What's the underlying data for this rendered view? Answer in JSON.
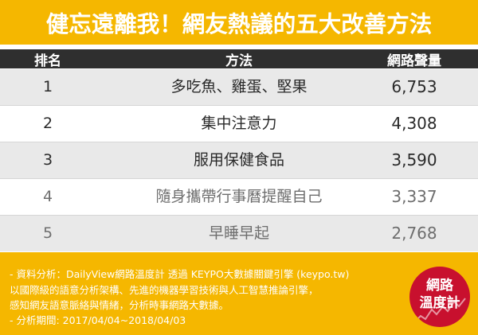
{
  "title": "健忘遠離我！網友熱議的五大改善方法",
  "chart_data": {
    "type": "table",
    "columns": [
      "排名",
      "方法",
      "網路聲量"
    ],
    "rows": [
      {
        "rank": "1",
        "method": "多吃魚、雞蛋、堅果",
        "volume": "6,753"
      },
      {
        "rank": "2",
        "method": "集中注意力",
        "volume": "4,308"
      },
      {
        "rank": "3",
        "method": "服用保健食品",
        "volume": "3,590"
      },
      {
        "rank": "4",
        "method": "隨身攜帶行事曆提醒自己",
        "volume": "3,337"
      },
      {
        "rank": "5",
        "method": "早睡早起",
        "volume": "2,768"
      }
    ]
  },
  "footer": {
    "lines": [
      "- 資料分析：DailyView網路溫度計 透過 KEYPO大數據關鍵引擎 (keypo.tw)",
      "  以國際級的語意分析架構、先進的機器學習技術與人工智慧推論引擎，",
      "  感知網友語意脈絡與情緒，分析時事網路大數據。",
      "- 分析期間: 2017/04/04~2018/04/03"
    ]
  },
  "logo": {
    "line1": "網路",
    "line2": "溫度計"
  },
  "colors": {
    "accent": "#f5b700",
    "header_bg": "#2f2f2f",
    "row_shade": "#e9e9e9",
    "logo_red": "#c8102e"
  }
}
